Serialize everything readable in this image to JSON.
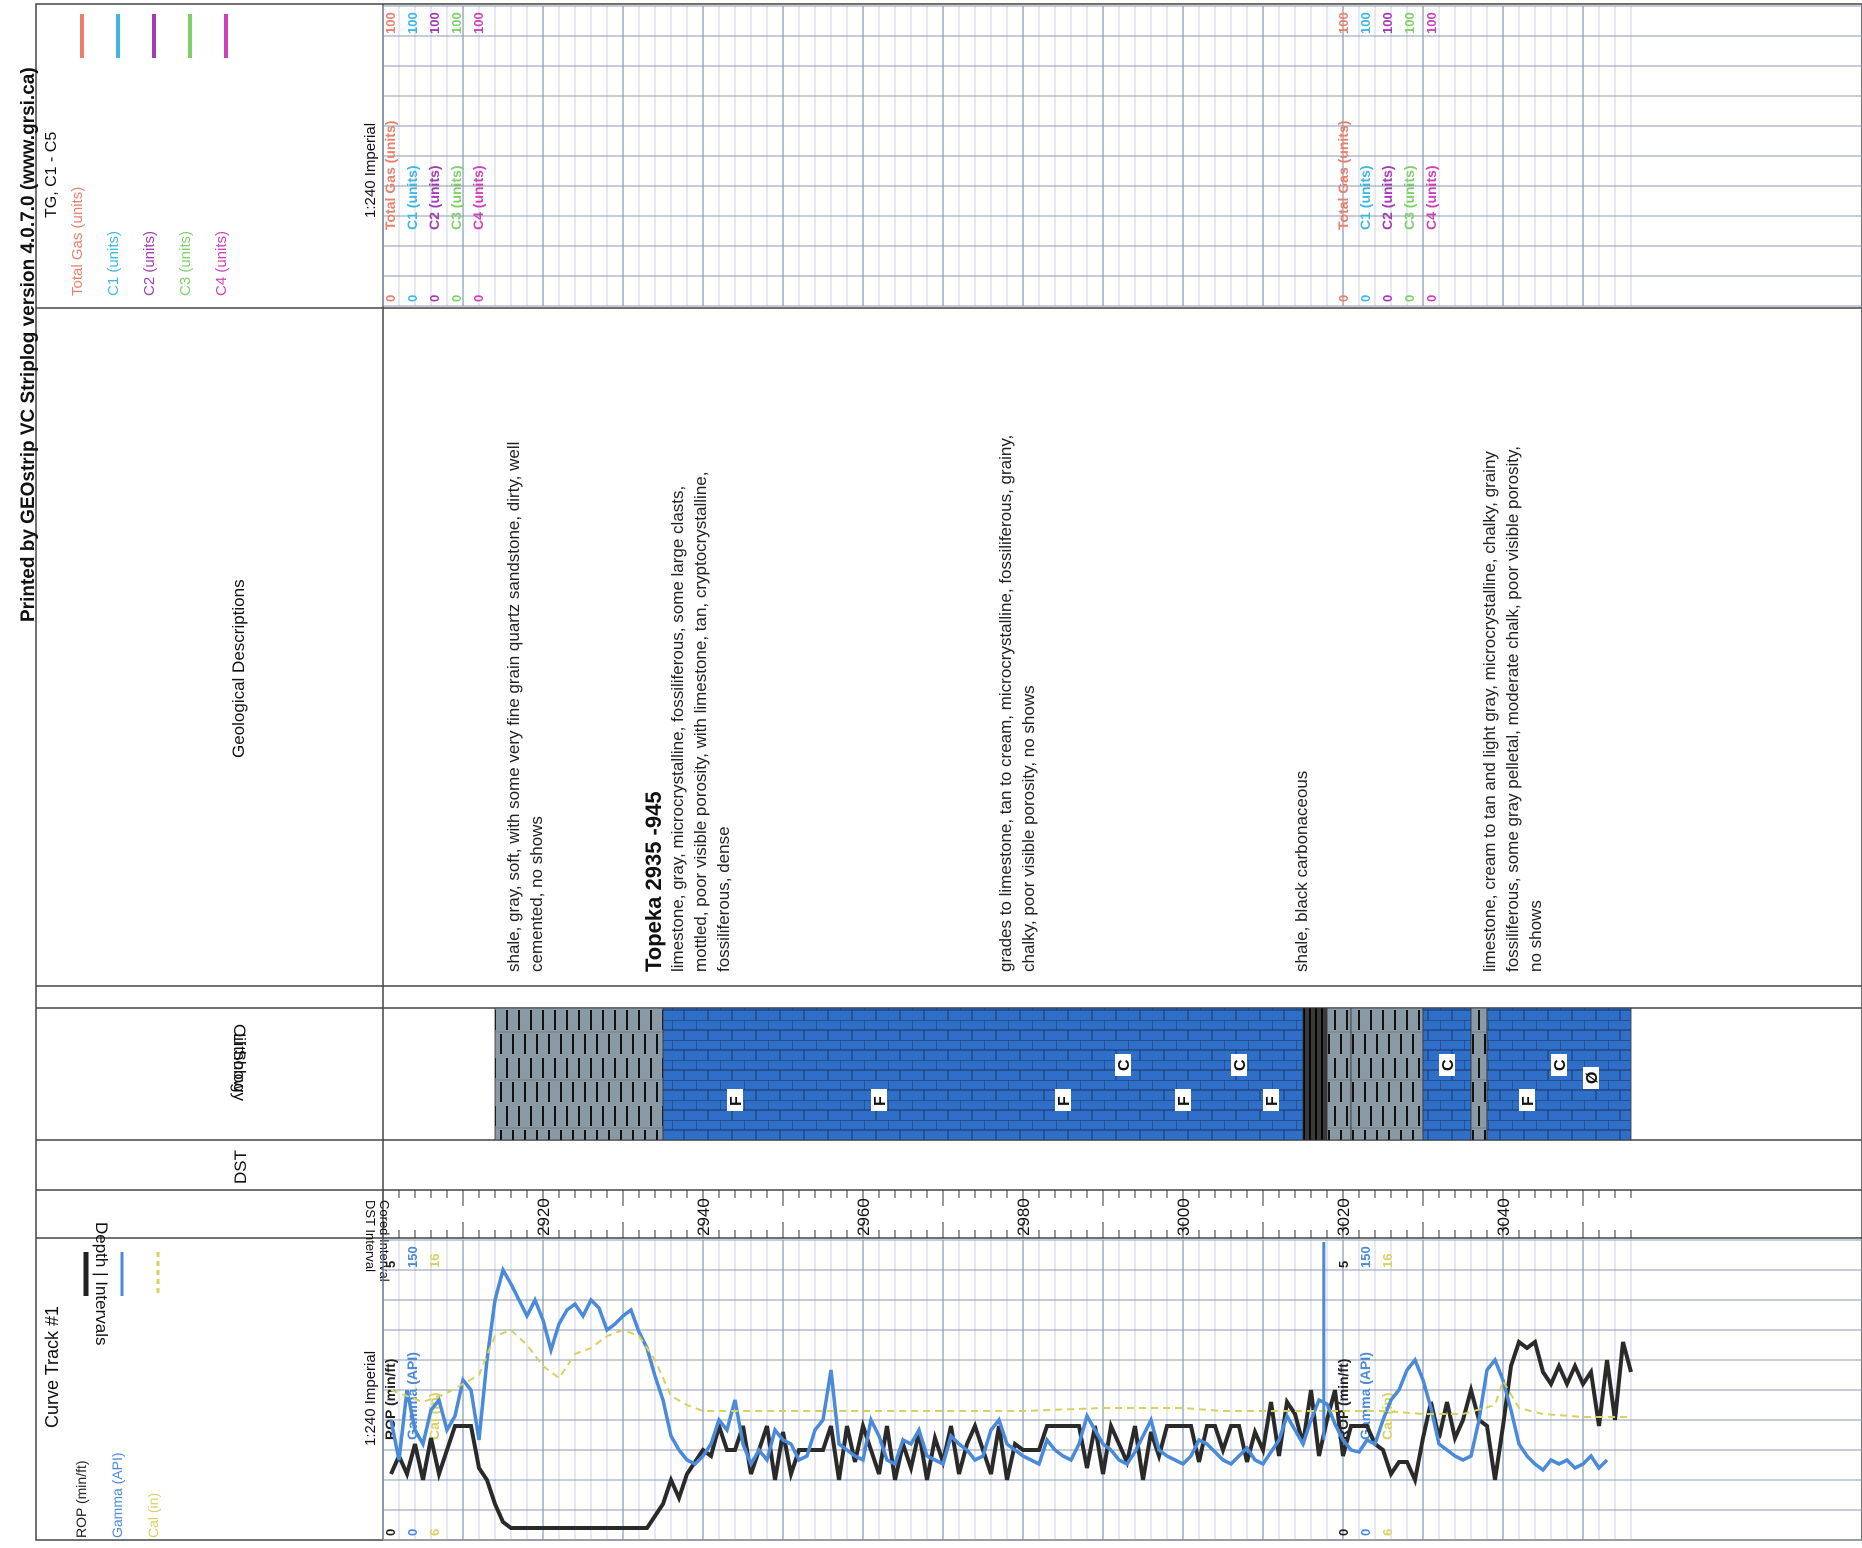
{
  "printed_by": "Printed by GEOstrip VC Striplog version 4.0.7.0 (www.grsi.ca)",
  "header": {
    "gas_track": {
      "title": "TG, C1 - C5",
      "legend": [
        {
          "name": "Total Gas (units)",
          "color": "#e8806c"
        },
        {
          "name": "C1 (units)",
          "color": "#3fb8e0"
        },
        {
          "name": "C2 (units)",
          "color": "#a23cb0"
        },
        {
          "name": "C3 (units)",
          "color": "#7fd06a"
        },
        {
          "name": "C4 (units)",
          "color": "#d040b8"
        }
      ]
    },
    "descriptions_title": "Geological Descriptions",
    "oil_show": "Oil Show",
    "lithology": "Lithology",
    "dst": "DST",
    "depth_intervals": "Depth | Intervals",
    "dst_interval": "DST Interval",
    "cored_interval": "Cored Interval",
    "curve_track": {
      "title": "Curve Track #1",
      "legend": [
        {
          "name": "ROP (min/ft)",
          "color": "#222222"
        },
        {
          "name": "Gamma (API)",
          "color": "#4a8ad8"
        },
        {
          "name": "Cal (in)",
          "color": "#d8d060"
        }
      ]
    }
  },
  "scale_label": "1:240 Imperial",
  "gas_scale_blocks": [
    {
      "labels": [
        {
          "name": "Total Gas (units)",
          "min": "0",
          "max": "100"
        },
        {
          "name": "C1 (units)",
          "min": "0",
          "max": "100"
        },
        {
          "name": "C2 (units)",
          "min": "0",
          "max": "100"
        },
        {
          "name": "C3 (units)",
          "min": "0",
          "max": "100"
        },
        {
          "name": "C4 (units)",
          "min": "0",
          "max": "100"
        }
      ]
    },
    {
      "labels": [
        {
          "name": "Total Gas (units)",
          "min": "0",
          "max": "100"
        },
        {
          "name": "C1 (units)",
          "min": "0",
          "max": "100"
        },
        {
          "name": "C2 (units)",
          "min": "0",
          "max": "100"
        },
        {
          "name": "C3 (units)",
          "min": "0",
          "max": "100"
        },
        {
          "name": "C4 (units)",
          "min": "0",
          "max": "100"
        }
      ]
    }
  ],
  "curve_scale_blocks": [
    {
      "labels": [
        {
          "name": "ROP (min/ft)",
          "min": "0",
          "max": "5"
        },
        {
          "name": "Gamma (API)",
          "min": "0",
          "max": "150"
        },
        {
          "name": "Cal (in)",
          "min": "6",
          "max": "16"
        }
      ]
    },
    {
      "labels": [
        {
          "name": "ROP (min/ft)",
          "min": "0",
          "max": "5"
        },
        {
          "name": "Gamma (API)",
          "min": "0",
          "max": "150"
        },
        {
          "name": "Cal (in)",
          "min": "6",
          "max": "16"
        }
      ]
    }
  ],
  "depth_ticks": [
    {
      "depth": 2920,
      "label": "2920"
    },
    {
      "depth": 2940,
      "label": "2940"
    },
    {
      "depth": 2960,
      "label": "2960"
    },
    {
      "depth": 2980,
      "label": "2980"
    },
    {
      "depth": 3000,
      "label": "3000"
    },
    {
      "depth": 3020,
      "label": "3020"
    },
    {
      "depth": 3040,
      "label": "3040"
    }
  ],
  "descriptions": [
    {
      "depth": 2917,
      "lines": [
        "shale, gray, soft, with some very fine grain quartz sandstone, dirty, well",
        "cemented, no shows"
      ]
    },
    {
      "depth": 2933.5,
      "formation": "Topeka  2935  -945"
    },
    {
      "depth": 2937.5,
      "lines": [
        "limestone, gray, microcrystalline, fossiliferous, some large clasts,",
        "mottled, poor visible porosity, with limestone, tan, cryptocrystalline,",
        "fossiliferous, dense"
      ]
    },
    {
      "depth": 2978.5,
      "lines": [
        "grades to limestone, tan to cream, microcrystalline, fossiliferous, grainy,",
        "chalky, poor visible porosity, no shows"
      ]
    },
    {
      "depth": 3015.5,
      "lines": [
        "shale, black carbonaceous"
      ]
    },
    {
      "depth": 3039,
      "lines": [
        "limestone, cream to tan and light gray, microcrystalline, chalky, grainy",
        "fossiliferous, some gray pelletal, moderate chalk, poor visible porosity,",
        "no shows"
      ]
    }
  ],
  "lithology": [
    {
      "top": 2914,
      "base": 2935,
      "rock": "shale",
      "color": "#8a9aa4"
    },
    {
      "top": 2935,
      "base": 3015,
      "rock": "limestone",
      "color": "#2f6fc8"
    },
    {
      "top": 3015,
      "base": 3018,
      "rock": "shale",
      "color": "#3a3a3a"
    },
    {
      "top": 3018,
      "base": 3021,
      "rock": "shale",
      "color": "#8a9aa4"
    },
    {
      "top": 3021,
      "base": 3030,
      "rock": "shale",
      "color": "#8a9aa4"
    },
    {
      "top": 3030,
      "base": 3036,
      "rock": "limestone",
      "color": "#2f6fc8"
    },
    {
      "top": 3036,
      "base": 3038,
      "rock": "shale",
      "color": "#8a9aa4"
    },
    {
      "top": 3038,
      "base": 3056,
      "rock": "limestone",
      "color": "#2f6fc8"
    }
  ],
  "lithology_symbols": [
    {
      "depth": 2944,
      "symbol": "F"
    },
    {
      "depth": 2962,
      "symbol": "F"
    },
    {
      "depth": 2985,
      "symbol": "F"
    },
    {
      "depth": 2992.5,
      "symbol": "C"
    },
    {
      "depth": 3000,
      "symbol": "F"
    },
    {
      "depth": 3007,
      "symbol": "C"
    },
    {
      "depth": 3011,
      "symbol": "F"
    },
    {
      "depth": 3033,
      "symbol": "C"
    },
    {
      "depth": 3043,
      "symbol": "F"
    },
    {
      "depth": 3047,
      "symbol": "C"
    },
    {
      "depth": 3051,
      "symbol": "Ø"
    }
  ],
  "chart_data": {
    "type": "line",
    "title": "Curve Track #1",
    "xlabel": "Depth",
    "scale": "1:240 Imperial",
    "depth_range": [
      2900,
      3056
    ],
    "series": [
      {
        "name": "ROP (min/ft)",
        "color": "#2a2a2a",
        "range": [
          0,
          5
        ],
        "depth": [
          2901,
          2902,
          2903,
          2904,
          2905,
          2906,
          2907,
          2908,
          2909,
          2910,
          2911,
          2912,
          2913,
          2914,
          2915,
          2916,
          2917,
          2920,
          2925,
          2930,
          2933,
          2934,
          2935,
          2936,
          2937,
          2938,
          2939,
          2940,
          2941,
          2942,
          2943,
          2944,
          2945,
          2946,
          2947,
          2948,
          2949,
          2950,
          2951,
          2952,
          2953,
          2954,
          2955,
          2956,
          2957,
          2958,
          2959,
          2960,
          2961,
          2962,
          2963,
          2964,
          2965,
          2966,
          2967,
          2968,
          2969,
          2970,
          2971,
          2972,
          2973,
          2974,
          2975,
          2976,
          2977,
          2978,
          2979,
          2980,
          2981,
          2982,
          2983,
          2984,
          2985,
          2986,
          2987,
          2988,
          2989,
          2990,
          2991,
          2992,
          2993,
          2994,
          2995,
          2996,
          2997,
          2998,
          2999,
          3000,
          3001,
          3002,
          3003,
          3004,
          3005,
          3006,
          3007,
          3008,
          3009,
          3010,
          3011,
          3012,
          3013,
          3014,
          3015,
          3016,
          3017,
          3018,
          3019,
          3020,
          3021,
          3022,
          3023,
          3024,
          3025,
          3026,
          3027,
          3028,
          3029,
          3030,
          3031,
          3032,
          3033,
          3034,
          3035,
          3036,
          3037,
          3038,
          3039,
          3040,
          3041,
          3042,
          3043,
          3044,
          3045,
          3046,
          3047,
          3048,
          3049,
          3050,
          3051,
          3052,
          3053,
          3054,
          3055,
          3056
        ],
        "values": [
          1.1,
          1.4,
          1.1,
          1.6,
          1.0,
          1.7,
          1.1,
          1.5,
          1.9,
          1.9,
          1.9,
          1.2,
          1.0,
          0.6,
          0.3,
          0.2,
          0.2,
          0.2,
          0.2,
          0.2,
          0.2,
          0.4,
          0.6,
          1.0,
          0.7,
          1.1,
          1.3,
          1.5,
          1.4,
          1.9,
          1.5,
          1.5,
          1.9,
          1.1,
          1.5,
          1.9,
          1.0,
          1.8,
          1.1,
          1.5,
          1.5,
          1.5,
          1.5,
          1.9,
          1.0,
          1.9,
          1.3,
          1.9,
          1.5,
          1.1,
          1.9,
          1.0,
          1.6,
          1.2,
          1.8,
          1.0,
          1.7,
          1.3,
          1.9,
          1.1,
          1.6,
          1.9,
          1.5,
          1.1,
          1.9,
          1.0,
          1.6,
          1.5,
          1.5,
          1.5,
          1.9,
          1.9,
          1.9,
          1.9,
          1.9,
          1.2,
          1.9,
          1.1,
          1.9,
          1.6,
          1.3,
          1.9,
          1.0,
          1.8,
          1.4,
          1.9,
          1.9,
          1.9,
          1.9,
          1.3,
          1.9,
          1.9,
          1.5,
          1.9,
          1.9,
          1.3,
          1.8,
          1.5,
          2.3,
          1.4,
          2.3,
          2.1,
          1.6,
          2.5,
          1.4,
          2.0,
          2.5,
          1.4,
          1.9,
          1.9,
          1.9,
          1.6,
          1.5,
          1.1,
          1.3,
          1.3,
          1.0,
          1.7,
          2.3,
          1.7,
          2.3,
          1.7,
          2.0,
          2.5,
          2.0,
          1.9,
          1.0,
          1.9,
          2.9,
          3.3,
          3.2,
          3.3,
          2.8,
          2.6,
          2.9,
          2.6,
          2.9,
          2.6,
          2.8,
          1.9,
          3.0,
          2.0,
          3.3,
          2.8,
          3.3
        ]
      },
      {
        "name": "Gamma (API)",
        "color": "#4a8ad8",
        "range": [
          0,
          150
        ],
        "depth": [
          2901,
          2902,
          2903,
          2904,
          2905,
          2906,
          2907,
          2908,
          2909,
          2910,
          2911,
          2912,
          2913,
          2914,
          2915,
          2916,
          2917,
          2918,
          2919,
          2920,
          2921,
          2922,
          2923,
          2924,
          2925,
          2926,
          2927,
          2928,
          2929,
          2930,
          2931,
          2932,
          2933,
          2934,
          2935,
          2936,
          2937,
          2938,
          2939,
          2940,
          2941,
          2942,
          2943,
          2944,
          2945,
          2946,
          2947,
          2948,
          2949,
          2950,
          2951,
          2952,
          2953,
          2954,
          2955,
          2956,
          2957,
          2958,
          2959,
          2960,
          2961,
          2962,
          2963,
          2964,
          2965,
          2966,
          2967,
          2968,
          2969,
          2970,
          2971,
          2972,
          2973,
          2974,
          2975,
          2976,
          2977,
          2978,
          2979,
          2980,
          2981,
          2982,
          2983,
          2984,
          2985,
          2986,
          2987,
          2988,
          2989,
          2990,
          2991,
          2992,
          2993,
          2994,
          2995,
          2996,
          2997,
          2998,
          2999,
          3000,
          3001,
          3002,
          3003,
          3004,
          3005,
          3006,
          3007,
          3008,
          3009,
          3010,
          3011,
          3012,
          3013,
          3014,
          3015,
          3016,
          3017,
          3018,
          3019,
          3020,
          3021,
          3022,
          3023,
          3024,
          3025,
          3026,
          3027,
          3028,
          3029,
          3030,
          3031,
          3032,
          3033,
          3034,
          3035,
          3036,
          3037,
          3038,
          3039,
          3040,
          3041,
          3042,
          3043,
          3044,
          3045,
          3046,
          3047,
          3048,
          3049,
          3050,
          3051,
          3052,
          3053,
          3054,
          3055,
          3056
        ],
        "values": [
          60,
          40,
          75,
          55,
          48,
          65,
          70,
          55,
          62,
          80,
          75,
          50,
          90,
          120,
          135,
          128,
          120,
          112,
          120,
          110,
          95,
          108,
          115,
          118,
          112,
          120,
          116,
          105,
          108,
          112,
          115,
          104,
          96,
          82,
          70,
          52,
          45,
          40,
          38,
          42,
          48,
          60,
          55,
          70,
          48,
          38,
          45,
          40,
          55,
          50,
          48,
          40,
          42,
          55,
          60,
          85,
          48,
          45,
          42,
          40,
          60,
          52,
          40,
          38,
          50,
          48,
          55,
          42,
          40,
          38,
          52,
          48,
          45,
          40,
          42,
          55,
          60,
          48,
          45,
          42,
          40,
          38,
          50,
          45,
          42,
          40,
          48,
          62,
          55,
          48,
          45,
          40,
          38,
          44,
          52,
          60,
          45,
          42,
          40,
          38,
          42,
          50,
          48,
          44,
          40,
          38,
          42,
          46,
          40,
          38,
          44,
          50,
          62,
          55,
          48,
          60,
          70,
          68,
          58,
          50,
          45,
          44,
          50,
          48,
          60,
          70,
          75,
          85,
          90,
          80,
          66,
          48,
          45,
          42,
          40,
          42,
          60,
          85,
          90,
          80,
          65,
          48,
          42,
          38,
          35,
          40,
          38,
          40,
          36,
          38,
          42,
          36,
          40
        ]
      },
      {
        "name": "Cal (in)",
        "color": "#d8d060",
        "range": [
          6,
          16
        ],
        "depth": [
          2901,
          2905,
          2908,
          2910,
          2912,
          2914,
          2916,
          2918,
          2920,
          2922,
          2924,
          2926,
          2928,
          2930,
          2932,
          2934,
          2936,
          2938,
          2940,
          2950,
          2960,
          2970,
          2980,
          2990,
          3000,
          3005,
          3010,
          3015,
          3020,
          3025,
          3030,
          3035,
          3039,
          3040,
          3042,
          3045,
          3050,
          3056
        ],
        "values": [
          11,
          10.6,
          10.9,
          11.2,
          11.5,
          12.8,
          13.0,
          12.5,
          11.8,
          11.4,
          12.2,
          12.4,
          12.8,
          13.0,
          12.8,
          12.0,
          10.8,
          10.5,
          10.3,
          10.3,
          10.3,
          10.3,
          10.3,
          10.4,
          10.4,
          10.3,
          10.3,
          10.3,
          10.3,
          10.3,
          10.2,
          10.2,
          10.5,
          11.3,
          10.4,
          10.2,
          10.1,
          10.1
        ]
      }
    ],
    "gas_track": {
      "title": "TG, C1 - C5",
      "series": [
        "Total Gas (units)",
        "C1 (units)",
        "C2 (units)",
        "C3 (units)",
        "C4 (units)"
      ],
      "range": [
        0,
        100
      ],
      "values_shown": "none"
    }
  }
}
